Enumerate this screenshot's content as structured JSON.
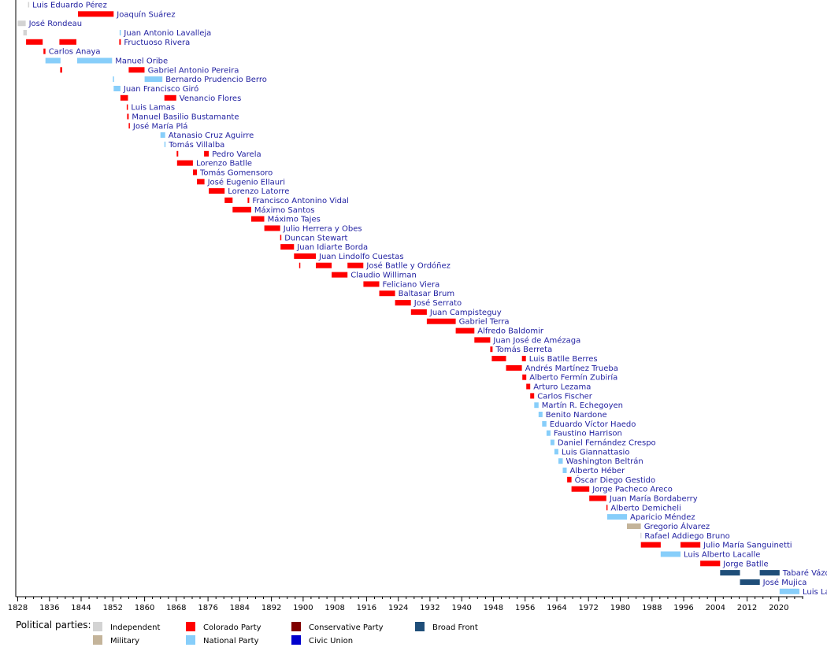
{
  "chart_data": {
    "type": "timeline",
    "xlim": [
      1827.5,
      2026.2
    ],
    "ticks": [
      1828,
      1836,
      1844,
      1852,
      1860,
      1868,
      1876,
      1884,
      1892,
      1900,
      1908,
      1916,
      1924,
      1932,
      1940,
      1948,
      1956,
      1964,
      1972,
      1980,
      1988,
      1996,
      2004,
      2012,
      2020
    ],
    "party_colors": {
      "Independent": "#d3d3d3",
      "Colorado Party": "#ff0000",
      "Conservative Party": "#800000",
      "Broad Front": "#1f4e79",
      "Military": "#c4b49a",
      "National Party": "#87cefa",
      "Civic Union": "#0000cd"
    },
    "legend": {
      "title": "Political parties:",
      "items": [
        "Independent",
        "Colorado Party",
        "Conservative Party",
        "Broad Front",
        "Military",
        "National Party",
        "Civic Union"
      ]
    },
    "rows": [
      {
        "name": "Luis Eduardo Pérez",
        "terms": [
          {
            "start": 1830.6,
            "end": 1830.9,
            "party": "Independent"
          }
        ]
      },
      {
        "name": "Joaquín Suárez",
        "terms": [
          {
            "start": 1843.2,
            "end": 1852.2,
            "party": "Colorado Party"
          }
        ]
      },
      {
        "name": "José Rondeau",
        "terms": [
          {
            "start": 1828.0,
            "end": 1830.0,
            "party": "Independent"
          }
        ]
      },
      {
        "name": "Juan Antonio Lavalleja",
        "terms": [
          {
            "start": 1829.4,
            "end": 1830.3,
            "party": "Independent"
          },
          {
            "start": 1853.7,
            "end": 1854.0,
            "party": "National Party"
          }
        ]
      },
      {
        "name": "Fructuoso Rivera",
        "terms": [
          {
            "start": 1830.1,
            "end": 1834.3,
            "party": "Colorado Party"
          },
          {
            "start": 1838.5,
            "end": 1842.8,
            "party": "Colorado Party"
          },
          {
            "start": 1853.6,
            "end": 1854.0,
            "party": "Colorado Party"
          }
        ]
      },
      {
        "name": "Carlos Anaya",
        "terms": [
          {
            "start": 1834.5,
            "end": 1835.0,
            "party": "Colorado Party"
          }
        ]
      },
      {
        "name": "Manuel Oribe",
        "terms": [
          {
            "start": 1835.0,
            "end": 1838.8,
            "party": "National Party"
          },
          {
            "start": 1843.0,
            "end": 1851.8,
            "party": "National Party"
          }
        ]
      },
      {
        "name": "Gabriel Antonio Pereira",
        "terms": [
          {
            "start": 1838.7,
            "end": 1839.2,
            "party": "Colorado Party"
          },
          {
            "start": 1856.0,
            "end": 1860.0,
            "party": "Colorado Party"
          }
        ]
      },
      {
        "name": "Bernardo Prudencio Berro",
        "terms": [
          {
            "start": 1852.0,
            "end": 1852.3,
            "party": "National Party"
          },
          {
            "start": 1860.0,
            "end": 1864.5,
            "party": "National Party"
          }
        ]
      },
      {
        "name": "Juan Francisco Giró",
        "terms": [
          {
            "start": 1852.2,
            "end": 1853.9,
            "party": "National Party"
          }
        ]
      },
      {
        "name": "Venancio Flores",
        "terms": [
          {
            "start": 1853.9,
            "end": 1855.8,
            "party": "Colorado Party"
          },
          {
            "start": 1865.0,
            "end": 1868.0,
            "party": "Colorado Party"
          }
        ]
      },
      {
        "name": "Luis Lamas",
        "terms": [
          {
            "start": 1855.5,
            "end": 1855.8,
            "party": "Colorado Party"
          }
        ]
      },
      {
        "name": "Manuel Basilio Bustamante",
        "terms": [
          {
            "start": 1855.6,
            "end": 1856.0,
            "party": "Colorado Party"
          }
        ]
      },
      {
        "name": "José María Plá",
        "terms": [
          {
            "start": 1856.0,
            "end": 1856.3,
            "party": "Colorado Party"
          }
        ]
      },
      {
        "name": "Atanasio Cruz Aguirre",
        "terms": [
          {
            "start": 1864.0,
            "end": 1865.2,
            "party": "National Party"
          }
        ]
      },
      {
        "name": "Tomás Villalba",
        "terms": [
          {
            "start": 1865.0,
            "end": 1865.3,
            "party": "National Party"
          }
        ]
      },
      {
        "name": "Pedro Varela",
        "terms": [
          {
            "start": 1868.1,
            "end": 1868.5,
            "party": "Colorado Party"
          },
          {
            "start": 1875.0,
            "end": 1876.2,
            "party": "Colorado Party"
          }
        ]
      },
      {
        "name": "Lorenzo Batlle",
        "terms": [
          {
            "start": 1868.2,
            "end": 1872.2,
            "party": "Colorado Party"
          }
        ]
      },
      {
        "name": "Tomás Gomensoro",
        "terms": [
          {
            "start": 1872.2,
            "end": 1873.2,
            "party": "Colorado Party"
          }
        ]
      },
      {
        "name": "José Eugenio Ellauri",
        "terms": [
          {
            "start": 1873.2,
            "end": 1875.1,
            "party": "Colorado Party"
          }
        ]
      },
      {
        "name": "Lorenzo Latorre",
        "terms": [
          {
            "start": 1876.2,
            "end": 1880.2,
            "party": "Colorado Party"
          }
        ]
      },
      {
        "name": "Francisco Antonino Vidal",
        "terms": [
          {
            "start": 1880.2,
            "end": 1882.2,
            "party": "Colorado Party"
          },
          {
            "start": 1886.0,
            "end": 1886.4,
            "party": "Colorado Party"
          }
        ]
      },
      {
        "name": "Máximo Santos",
        "terms": [
          {
            "start": 1882.2,
            "end": 1886.9,
            "party": "Colorado Party"
          }
        ]
      },
      {
        "name": "Máximo Tajes",
        "terms": [
          {
            "start": 1886.9,
            "end": 1890.2,
            "party": "Colorado Party"
          }
        ]
      },
      {
        "name": "Julio Herrera y Obes",
        "terms": [
          {
            "start": 1890.2,
            "end": 1894.2,
            "party": "Colorado Party"
          }
        ]
      },
      {
        "name": "Duncan Stewart",
        "terms": [
          {
            "start": 1894.2,
            "end": 1894.5,
            "party": "Colorado Party"
          }
        ]
      },
      {
        "name": "Juan Idiarte Borda",
        "terms": [
          {
            "start": 1894.3,
            "end": 1897.7,
            "party": "Colorado Party"
          }
        ]
      },
      {
        "name": "Juan Lindolfo Cuestas",
        "terms": [
          {
            "start": 1897.7,
            "end": 1903.2,
            "party": "Colorado Party"
          }
        ]
      },
      {
        "name": "José Batlle y Ordóñez",
        "terms": [
          {
            "start": 1899.0,
            "end": 1899.3,
            "party": "Colorado Party"
          },
          {
            "start": 1903.2,
            "end": 1907.2,
            "party": "Colorado Party"
          },
          {
            "start": 1911.2,
            "end": 1915.2,
            "party": "Colorado Party"
          }
        ]
      },
      {
        "name": "Claudio Williman",
        "terms": [
          {
            "start": 1907.2,
            "end": 1911.2,
            "party": "Colorado Party"
          }
        ]
      },
      {
        "name": "Feliciano Viera",
        "terms": [
          {
            "start": 1915.2,
            "end": 1919.2,
            "party": "Colorado Party"
          }
        ]
      },
      {
        "name": "Baltasar Brum",
        "terms": [
          {
            "start": 1919.2,
            "end": 1923.2,
            "party": "Colorado Party"
          }
        ]
      },
      {
        "name": "José Serrato",
        "terms": [
          {
            "start": 1923.2,
            "end": 1927.2,
            "party": "Colorado Party"
          }
        ]
      },
      {
        "name": "Juan Campisteguy",
        "terms": [
          {
            "start": 1927.2,
            "end": 1931.2,
            "party": "Colorado Party"
          }
        ]
      },
      {
        "name": "Gabriel Terra",
        "terms": [
          {
            "start": 1931.2,
            "end": 1938.5,
            "party": "Colorado Party"
          }
        ]
      },
      {
        "name": "Alfredo Baldomir",
        "terms": [
          {
            "start": 1938.5,
            "end": 1943.2,
            "party": "Colorado Party"
          }
        ]
      },
      {
        "name": "Juan José de Amézaga",
        "terms": [
          {
            "start": 1943.2,
            "end": 1947.2,
            "party": "Colorado Party"
          }
        ]
      },
      {
        "name": "Tomás Berreta",
        "terms": [
          {
            "start": 1947.2,
            "end": 1947.8,
            "party": "Colorado Party"
          }
        ]
      },
      {
        "name": "Luis Batlle Berres",
        "terms": [
          {
            "start": 1947.6,
            "end": 1951.2,
            "party": "Colorado Party"
          },
          {
            "start": 1955.2,
            "end": 1956.2,
            "party": "Colorado Party"
          }
        ]
      },
      {
        "name": "Andrés Martínez Trueba",
        "terms": [
          {
            "start": 1951.2,
            "end": 1955.2,
            "party": "Colorado Party"
          }
        ]
      },
      {
        "name": "Alberto Fermín Zubiría",
        "terms": [
          {
            "start": 1955.3,
            "end": 1956.3,
            "party": "Colorado Party"
          }
        ]
      },
      {
        "name": "Arturo Lezama",
        "terms": [
          {
            "start": 1956.3,
            "end": 1957.3,
            "party": "Colorado Party"
          }
        ]
      },
      {
        "name": "Carlos Fischer",
        "terms": [
          {
            "start": 1957.3,
            "end": 1958.3,
            "party": "Colorado Party"
          }
        ]
      },
      {
        "name": "Martín R. Echegoyen",
        "terms": [
          {
            "start": 1958.3,
            "end": 1959.4,
            "party": "National Party"
          }
        ]
      },
      {
        "name": "Benito Nardone",
        "terms": [
          {
            "start": 1959.4,
            "end": 1960.4,
            "party": "National Party"
          }
        ]
      },
      {
        "name": "Eduardo Víctor Haedo",
        "terms": [
          {
            "start": 1960.3,
            "end": 1961.4,
            "party": "National Party"
          }
        ]
      },
      {
        "name": "Faustino Harrison",
        "terms": [
          {
            "start": 1961.4,
            "end": 1962.4,
            "party": "National Party"
          }
        ]
      },
      {
        "name": "Daniel Fernández Crespo",
        "terms": [
          {
            "start": 1962.4,
            "end": 1963.4,
            "party": "National Party"
          }
        ]
      },
      {
        "name": "Luis Giannattasio",
        "terms": [
          {
            "start": 1963.4,
            "end": 1964.4,
            "party": "National Party"
          }
        ]
      },
      {
        "name": "Washington Beltrán",
        "terms": [
          {
            "start": 1964.4,
            "end": 1965.5,
            "party": "National Party"
          }
        ]
      },
      {
        "name": "Alberto Héber",
        "terms": [
          {
            "start": 1965.5,
            "end": 1966.5,
            "party": "National Party"
          }
        ]
      },
      {
        "name": "Óscar Diego Gestido",
        "terms": [
          {
            "start": 1966.6,
            "end": 1967.7,
            "party": "Colorado Party"
          }
        ]
      },
      {
        "name": "Jorge Pacheco Areco",
        "terms": [
          {
            "start": 1967.7,
            "end": 1972.2,
            "party": "Colorado Party"
          }
        ]
      },
      {
        "name": "Juan María Bordaberry",
        "terms": [
          {
            "start": 1972.2,
            "end": 1976.5,
            "party": "Colorado Party"
          }
        ]
      },
      {
        "name": "Alberto Demicheli",
        "terms": [
          {
            "start": 1976.5,
            "end": 1976.8,
            "party": "Colorado Party"
          }
        ]
      },
      {
        "name": "Aparicio Méndez",
        "terms": [
          {
            "start": 1976.7,
            "end": 1981.7,
            "party": "National Party"
          }
        ]
      },
      {
        "name": "Gregorio Álvarez",
        "terms": [
          {
            "start": 1981.7,
            "end": 1985.2,
            "party": "Military"
          }
        ]
      },
      {
        "name": "Rafael Addiego Bruno",
        "terms": [
          {
            "start": 1985.1,
            "end": 1985.3,
            "party": "Independent"
          }
        ]
      },
      {
        "name": "Julio María Sanguinetti",
        "terms": [
          {
            "start": 1985.2,
            "end": 1990.2,
            "party": "Colorado Party"
          },
          {
            "start": 1995.2,
            "end": 2000.2,
            "party": "Colorado Party"
          }
        ]
      },
      {
        "name": "Luis Alberto Lacalle",
        "terms": [
          {
            "start": 1990.2,
            "end": 1995.2,
            "party": "National Party"
          }
        ]
      },
      {
        "name": "Jorge Batlle",
        "terms": [
          {
            "start": 2000.2,
            "end": 2005.2,
            "party": "Colorado Party"
          }
        ]
      },
      {
        "name": "Tabaré Vázquez",
        "terms": [
          {
            "start": 2005.2,
            "end": 2010.2,
            "party": "Broad Front"
          },
          {
            "start": 2015.2,
            "end": 2020.2,
            "party": "Broad Front"
          }
        ]
      },
      {
        "name": "José Mujica",
        "terms": [
          {
            "start": 2010.2,
            "end": 2015.2,
            "party": "Broad Front"
          }
        ]
      },
      {
        "name": "Luis Lacalle Pou",
        "terms": [
          {
            "start": 2020.2,
            "end": 2025.2,
            "party": "National Party"
          }
        ]
      }
    ]
  }
}
